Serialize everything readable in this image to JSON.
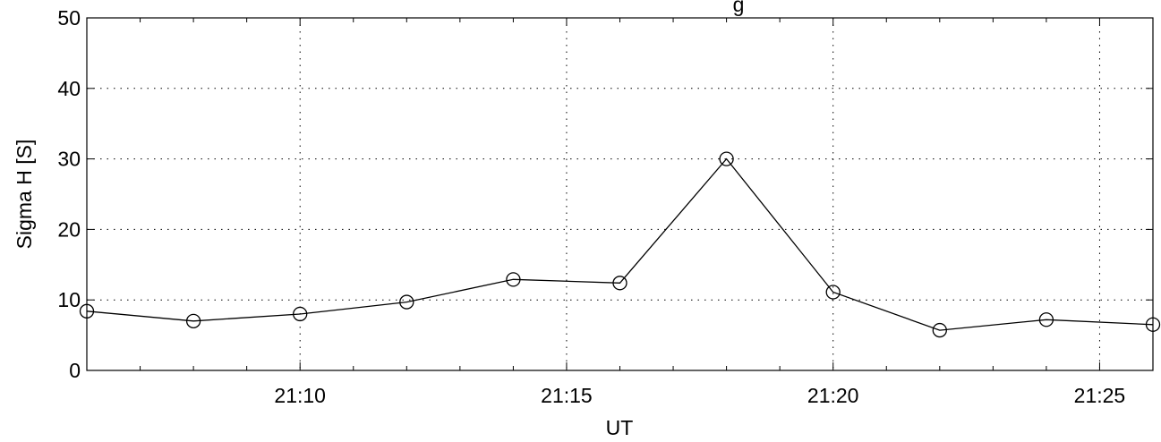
{
  "chart_data": {
    "type": "line",
    "title": "g",
    "xlabel": "UT",
    "ylabel": "Sigma H [S]",
    "xlim_minutes": [
      6,
      26
    ],
    "ylim": [
      0,
      50
    ],
    "xticks": [
      {
        "minute": 10,
        "label": "21:10"
      },
      {
        "minute": 15,
        "label": "21:15"
      },
      {
        "minute": 20,
        "label": "21:20"
      },
      {
        "minute": 25,
        "label": "21:25"
      }
    ],
    "yticks": [
      {
        "value": 0,
        "label": "0"
      },
      {
        "value": 10,
        "label": "10"
      },
      {
        "value": 20,
        "label": "20"
      },
      {
        "value": 30,
        "label": "30"
      },
      {
        "value": 40,
        "label": "40"
      },
      {
        "value": 50,
        "label": "50"
      }
    ],
    "grid": true,
    "marker": "open-circle",
    "line_color": "#000000",
    "series": [
      {
        "x": [
          "21:06",
          "21:08",
          "21:10",
          "21:12",
          "21:14",
          "21:16",
          "21:18",
          "21:20",
          "21:22",
          "21:24",
          "21:26"
        ],
        "x_minutes": [
          6,
          8,
          10,
          12,
          14,
          16,
          18,
          20,
          22,
          24,
          26
        ],
        "values": [
          8.4,
          7.0,
          8.0,
          9.7,
          12.9,
          12.4,
          30.0,
          11.1,
          5.7,
          7.2,
          6.5
        ]
      }
    ]
  }
}
